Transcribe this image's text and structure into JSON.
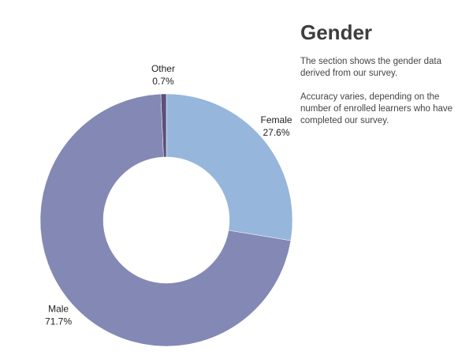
{
  "chart_data": {
    "type": "donut",
    "title": "Gender",
    "description": [
      "The section shows the gender data derived from our survey.",
      "Accuracy varies, depending on the number of enrolled learners who have completed our survey."
    ],
    "categories": [
      "Female",
      "Male",
      "Other"
    ],
    "values": [
      27.6,
      71.7,
      0.7
    ],
    "value_labels": [
      "27.6%",
      "71.7%",
      "0.7%"
    ],
    "colors": [
      "#96b6dc",
      "#8388b4",
      "#5c4f7a"
    ]
  }
}
